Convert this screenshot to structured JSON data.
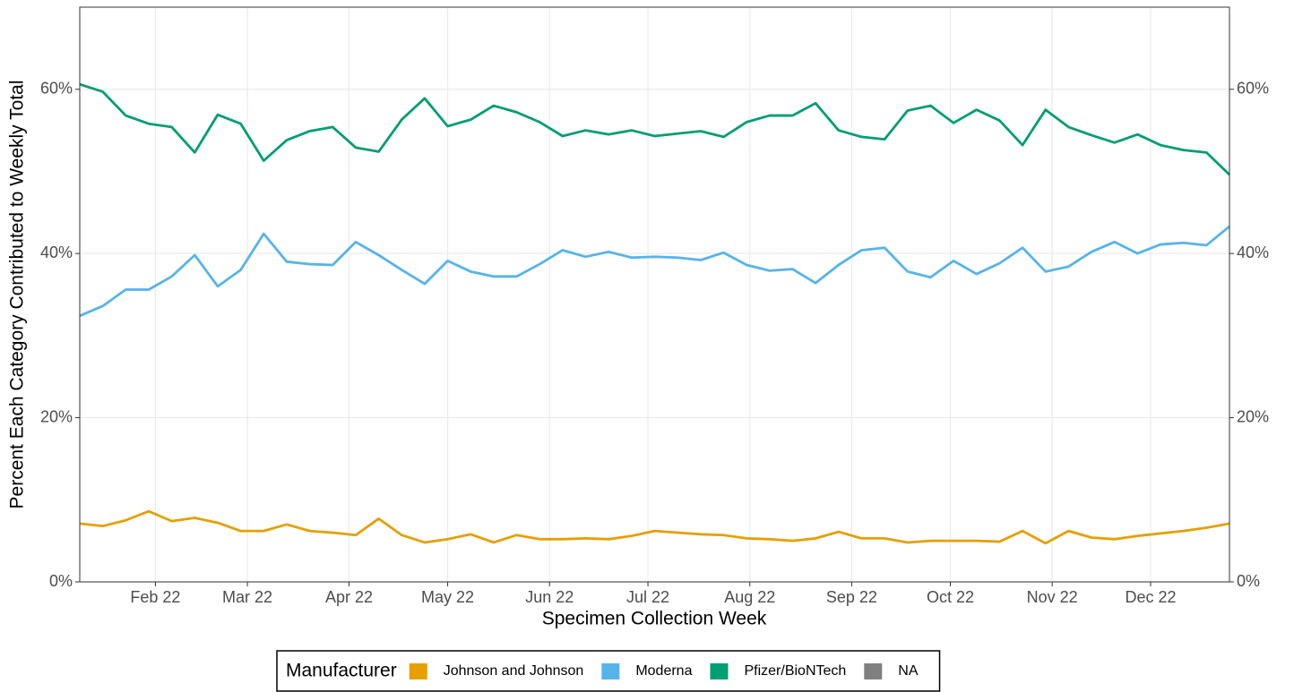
{
  "chart_data": {
    "type": "line",
    "x_label": "Specimen Collection Week",
    "y_label": "Percent Each Category Contributed to Weekly Total",
    "x": [
      0,
      1,
      2,
      3,
      4,
      5,
      6,
      7,
      8,
      9,
      10,
      11,
      12,
      13,
      14,
      15,
      16,
      17,
      18,
      19,
      20,
      21,
      22,
      23,
      24,
      25,
      26,
      27,
      28,
      29,
      30,
      31,
      32,
      33,
      34,
      35,
      36,
      37,
      38,
      39,
      40,
      41,
      42,
      43,
      44,
      45,
      46,
      47,
      48,
      49,
      50
    ],
    "xlim": [
      0,
      50
    ],
    "xticks": [
      {
        "value": 3.29,
        "label": "Feb 22"
      },
      {
        "value": 7.29,
        "label": "Mar 22"
      },
      {
        "value": 11.71,
        "label": "Apr 22"
      },
      {
        "value": 16,
        "label": "May 22"
      },
      {
        "value": 20.43,
        "label": "Jun 22"
      },
      {
        "value": 24.71,
        "label": "Jul 22"
      },
      {
        "value": 29.14,
        "label": "Aug 22"
      },
      {
        "value": 33.57,
        "label": "Sep 22"
      },
      {
        "value": 37.86,
        "label": "Oct 22"
      },
      {
        "value": 42.29,
        "label": "Nov 22"
      },
      {
        "value": 46.57,
        "label": "Dec 22"
      }
    ],
    "ylim": [
      0,
      70
    ],
    "yticks": [
      {
        "value": 0,
        "label": "0%"
      },
      {
        "value": 20,
        "label": "20%"
      },
      {
        "value": 40,
        "label": "40%"
      },
      {
        "value": 60,
        "label": "60%"
      }
    ],
    "grid": true,
    "legend_title": "Manufacturer",
    "legend_position": "bottom",
    "series": [
      {
        "name": "Johnson and Johnson",
        "color": "#e69f00",
        "values": [
          7.1,
          6.8,
          7.5,
          8.6,
          7.4,
          7.8,
          7.2,
          6.2,
          6.2,
          7.0,
          6.2,
          6.0,
          5.7,
          7.7,
          5.7,
          4.8,
          5.2,
          5.8,
          4.8,
          5.7,
          5.2,
          5.2,
          5.3,
          5.2,
          5.6,
          6.2,
          6.0,
          5.8,
          5.7,
          5.3,
          5.2,
          5.0,
          5.3,
          6.1,
          5.3,
          5.3,
          4.8,
          5.0,
          5.0,
          5.0,
          4.9,
          6.2,
          4.7,
          6.2,
          5.4,
          5.2,
          5.6,
          5.9,
          6.2,
          6.6,
          7.1
        ]
      },
      {
        "name": "Moderna",
        "color": "#56b4e9",
        "values": [
          32.4,
          33.6,
          35.6,
          35.6,
          37.2,
          39.8,
          36.0,
          38.0,
          42.4,
          39.0,
          38.7,
          38.6,
          41.4,
          39.8,
          38.0,
          36.3,
          39.1,
          37.8,
          37.2,
          37.2,
          38.7,
          40.4,
          39.6,
          40.2,
          39.5,
          39.6,
          39.5,
          39.2,
          40.1,
          38.6,
          37.9,
          38.1,
          36.4,
          38.6,
          40.4,
          40.7,
          37.8,
          37.1,
          39.1,
          37.5,
          38.8,
          40.7,
          37.8,
          38.4,
          40.2,
          41.4,
          40.0,
          41.1,
          41.3,
          41.0,
          43.3
        ]
      },
      {
        "name": "Pfizer/BioNTech",
        "color": "#009e73",
        "values": [
          60.6,
          59.7,
          56.8,
          55.8,
          55.4,
          52.3,
          56.9,
          55.8,
          51.3,
          53.8,
          54.9,
          55.4,
          52.9,
          52.4,
          56.3,
          58.9,
          55.5,
          56.3,
          58.0,
          57.2,
          56.0,
          54.3,
          55.0,
          54.5,
          55.0,
          54.3,
          54.6,
          54.9,
          54.2,
          56.0,
          56.8,
          56.8,
          58.3,
          55.0,
          54.2,
          53.9,
          57.4,
          58.0,
          55.9,
          57.5,
          56.2,
          53.2,
          57.5,
          55.4,
          54.4,
          53.5,
          54.5,
          53.2,
          52.6,
          52.3,
          49.6
        ]
      },
      {
        "name": "NA",
        "color": "#808080",
        "values": [
          null,
          null,
          null,
          null,
          null,
          null,
          null,
          null,
          null,
          null,
          null,
          null,
          null,
          null,
          null,
          null,
          null,
          null,
          null,
          null,
          null,
          null,
          null,
          null,
          null,
          null,
          null,
          null,
          null,
          null,
          null,
          null,
          null,
          null,
          null,
          null,
          null,
          null,
          null,
          null,
          null,
          null,
          null,
          null,
          null,
          null,
          null,
          null,
          null,
          null,
          null
        ]
      }
    ]
  }
}
